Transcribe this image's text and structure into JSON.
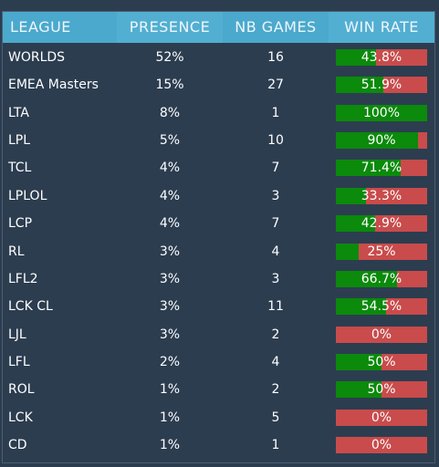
{
  "table": {
    "header": [
      "LEAGUE",
      "PRESENCE",
      "NB GAMES",
      "WIN RATE"
    ],
    "rows": [
      [
        "WORLDS",
        "52%",
        "16",
        {
          "value": 43.8,
          "label": "43.8%"
        }
      ],
      [
        "EMEA Masters",
        "15%",
        "27",
        {
          "value": 51.9,
          "label": "51.9%"
        }
      ],
      [
        "LTA",
        "8%",
        "1",
        {
          "value": 100,
          "label": "100%"
        }
      ],
      [
        "LPL",
        "5%",
        "10",
        {
          "value": 90,
          "label": "90%"
        }
      ],
      [
        "TCL",
        "4%",
        "7",
        {
          "value": 71.4,
          "label": "71.4%"
        }
      ],
      [
        "LPLOL",
        "4%",
        "3",
        {
          "value": 33.3,
          "label": "33.3%"
        }
      ],
      [
        "LCP",
        "4%",
        "7",
        {
          "value": 42.9,
          "label": "42.9%"
        }
      ],
      [
        "RL",
        "3%",
        "4",
        {
          "value": 25,
          "label": "25%"
        }
      ],
      [
        "LFL2",
        "3%",
        "3",
        {
          "value": 66.7,
          "label": "66.7%"
        }
      ],
      [
        "LCK CL",
        "3%",
        "11",
        {
          "value": 54.5,
          "label": "54.5%"
        }
      ],
      [
        "LJL",
        "3%",
        "2",
        {
          "value": 0,
          "label": "0%"
        }
      ],
      [
        "LFL",
        "2%",
        "4",
        {
          "value": 50,
          "label": "50%"
        }
      ],
      [
        "ROL",
        "1%",
        "2",
        {
          "value": 50,
          "label": "50%"
        }
      ],
      [
        "LCK",
        "1%",
        "5",
        {
          "value": 0,
          "label": "0%"
        }
      ],
      [
        "CD",
        "1%",
        "1",
        {
          "value": 0,
          "label": "0%"
        }
      ]
    ]
  }
}
